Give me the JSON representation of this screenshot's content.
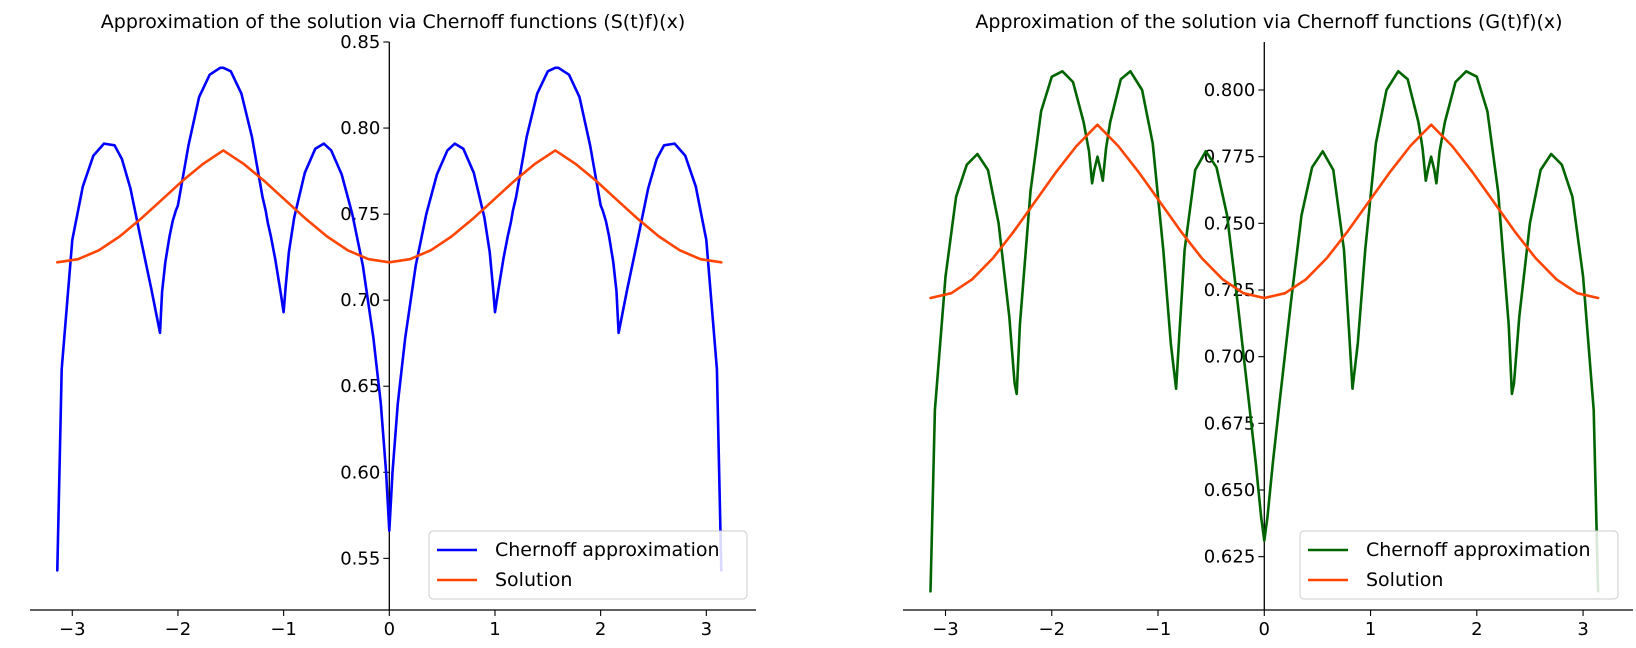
{
  "chart_data": [
    {
      "type": "line",
      "title": "Approximation of the solution via Chernoff functions (S(t)f)(x)",
      "xlim": [
        -3.4,
        3.47
      ],
      "ylim": [
        0.52,
        0.85
      ],
      "x_ticks": [
        -3,
        -2,
        -1,
        0,
        1,
        2,
        3
      ],
      "x_tick_labels": [
        "−3",
        "−2",
        "−1",
        "0",
        "1",
        "2",
        "3"
      ],
      "y_ticks": [
        0.55,
        0.6,
        0.65,
        0.7,
        0.75,
        0.8,
        0.85
      ],
      "y_tick_labels": [
        "0.55",
        "0.60",
        "0.65",
        "0.70",
        "0.75",
        "0.80",
        "0.85"
      ],
      "spines": "centered at origin (left and bottom)",
      "grid": false,
      "legend_position": "lower-right",
      "series": [
        {
          "name": "Chernoff approximation",
          "color": "#0000ff",
          "x": [
            -3.1416,
            -3.1,
            -3.0,
            -2.9,
            -2.8,
            -2.7,
            -2.6,
            -2.53,
            -2.45,
            -2.35,
            -2.25,
            -2.17,
            -2.15,
            -2.12,
            -2.08,
            -2.05,
            -2.02,
            -2.0,
            -1.9,
            -1.8,
            -1.7,
            -1.6,
            -1.57,
            -1.5,
            -1.4,
            -1.3,
            -1.2,
            -1.17,
            -1.15,
            -1.12,
            -1.08,
            -1.03,
            -1.0,
            -0.98,
            -0.95,
            -0.9,
            -0.8,
            -0.7,
            -0.62,
            -0.55,
            -0.45,
            -0.35,
            -0.25,
            -0.15,
            -0.08,
            -0.03,
            0.0,
            0.03,
            0.08,
            0.15,
            0.25,
            0.35,
            0.45,
            0.55,
            0.62,
            0.7,
            0.8,
            0.9,
            0.95,
            0.98,
            1.0,
            1.03,
            1.08,
            1.12,
            1.15,
            1.17,
            1.2,
            1.3,
            1.4,
            1.5,
            1.57,
            1.6,
            1.7,
            1.8,
            1.9,
            2.0,
            2.02,
            2.05,
            2.08,
            2.12,
            2.15,
            2.17,
            2.25,
            2.35,
            2.45,
            2.53,
            2.6,
            2.7,
            2.8,
            2.9,
            3.0,
            3.1,
            3.1416
          ],
          "y": [
            0.543,
            0.66,
            0.735,
            0.766,
            0.784,
            0.791,
            0.79,
            0.782,
            0.765,
            0.735,
            0.706,
            0.681,
            0.705,
            0.722,
            0.737,
            0.746,
            0.752,
            0.755,
            0.79,
            0.818,
            0.831,
            0.835,
            0.835,
            0.833,
            0.82,
            0.795,
            0.76,
            0.752,
            0.745,
            0.737,
            0.724,
            0.705,
            0.693,
            0.708,
            0.728,
            0.748,
            0.774,
            0.788,
            0.791,
            0.787,
            0.773,
            0.75,
            0.72,
            0.678,
            0.64,
            0.6,
            0.566,
            0.6,
            0.64,
            0.678,
            0.72,
            0.75,
            0.773,
            0.787,
            0.791,
            0.788,
            0.774,
            0.748,
            0.728,
            0.708,
            0.693,
            0.705,
            0.724,
            0.737,
            0.745,
            0.752,
            0.76,
            0.795,
            0.82,
            0.833,
            0.835,
            0.835,
            0.831,
            0.818,
            0.79,
            0.755,
            0.752,
            0.746,
            0.737,
            0.722,
            0.705,
            0.681,
            0.706,
            0.735,
            0.765,
            0.782,
            0.79,
            0.791,
            0.784,
            0.766,
            0.735,
            0.66,
            0.543
          ]
        },
        {
          "name": "Solution",
          "color": "#ff4500",
          "x": [
            -3.1416,
            -2.9452,
            -2.7489,
            -2.5525,
            -2.3562,
            -2.1598,
            -1.9635,
            -1.7671,
            -1.5708,
            -1.3744,
            -1.1781,
            -0.9817,
            -0.7854,
            -0.589,
            -0.3927,
            -0.1963,
            0.0,
            0.1963,
            0.3927,
            0.589,
            0.7854,
            0.9817,
            1.1781,
            1.3744,
            1.5708,
            1.7671,
            1.9635,
            2.1598,
            2.3562,
            2.5525,
            2.7489,
            2.9452,
            3.1416
          ],
          "y": [
            0.722,
            0.7238,
            0.729,
            0.737,
            0.747,
            0.758,
            0.769,
            0.779,
            0.787,
            0.779,
            0.769,
            0.758,
            0.747,
            0.737,
            0.729,
            0.7238,
            0.722,
            0.7238,
            0.729,
            0.737,
            0.747,
            0.758,
            0.769,
            0.779,
            0.787,
            0.779,
            0.769,
            0.758,
            0.747,
            0.737,
            0.729,
            0.7238,
            0.722
          ]
        }
      ]
    },
    {
      "type": "line",
      "title": "Approximation of the solution via Chernoff functions (G(t)f)(x)",
      "xlim": [
        -3.4,
        3.47
      ],
      "ylim": [
        0.605,
        0.818
      ],
      "x_ticks": [
        -3,
        -2,
        -1,
        0,
        1,
        2,
        3
      ],
      "x_tick_labels": [
        "−3",
        "−2",
        "−1",
        "0",
        "1",
        "2",
        "3"
      ],
      "y_ticks": [
        0.625,
        0.65,
        0.675,
        0.7,
        0.725,
        0.75,
        0.775,
        0.8
      ],
      "y_tick_labels": [
        "0.625",
        "0.650",
        "0.675",
        "0.700",
        "0.725",
        "0.750",
        "0.775",
        "0.800"
      ],
      "spines": "centered at origin (left and bottom)",
      "grid": false,
      "legend_position": "lower-right",
      "series": [
        {
          "name": "Chernoff approximation",
          "color": "#006400",
          "x": [
            -3.1416,
            -3.1,
            -3.0,
            -2.9,
            -2.8,
            -2.7,
            -2.6,
            -2.5,
            -2.4,
            -2.35,
            -2.33,
            -2.3,
            -2.2,
            -2.1,
            -2.0,
            -1.9,
            -1.8,
            -1.7,
            -1.65,
            -1.62,
            -1.6,
            -1.57,
            -1.54,
            -1.52,
            -1.49,
            -1.45,
            -1.35,
            -1.26,
            -1.15,
            -1.05,
            -0.95,
            -0.88,
            -0.83,
            -0.8,
            -0.75,
            -0.65,
            -0.55,
            -0.45,
            -0.35,
            -0.25,
            -0.15,
            -0.08,
            -0.03,
            0.0,
            0.03,
            0.08,
            0.15,
            0.25,
            0.35,
            0.45,
            0.55,
            0.65,
            0.75,
            0.8,
            0.83,
            0.88,
            0.95,
            1.05,
            1.15,
            1.26,
            1.35,
            1.45,
            1.49,
            1.52,
            1.54,
            1.57,
            1.6,
            1.62,
            1.65,
            1.7,
            1.8,
            1.9,
            2.0,
            2.1,
            2.2,
            2.3,
            2.33,
            2.35,
            2.4,
            2.5,
            2.6,
            2.7,
            2.8,
            2.9,
            3.0,
            3.1,
            3.1416
          ],
          "y": [
            0.612,
            0.68,
            0.73,
            0.76,
            0.772,
            0.776,
            0.77,
            0.75,
            0.715,
            0.69,
            0.686,
            0.712,
            0.762,
            0.792,
            0.805,
            0.807,
            0.803,
            0.788,
            0.777,
            0.765,
            0.77,
            0.775,
            0.77,
            0.766,
            0.778,
            0.788,
            0.804,
            0.807,
            0.8,
            0.78,
            0.74,
            0.705,
            0.688,
            0.708,
            0.74,
            0.77,
            0.777,
            0.771,
            0.753,
            0.72,
            0.685,
            0.66,
            0.64,
            0.631,
            0.64,
            0.66,
            0.685,
            0.72,
            0.753,
            0.771,
            0.777,
            0.77,
            0.74,
            0.708,
            0.688,
            0.705,
            0.74,
            0.78,
            0.8,
            0.807,
            0.804,
            0.788,
            0.778,
            0.766,
            0.77,
            0.775,
            0.77,
            0.765,
            0.777,
            0.788,
            0.803,
            0.807,
            0.805,
            0.792,
            0.762,
            0.712,
            0.686,
            0.69,
            0.715,
            0.75,
            0.77,
            0.776,
            0.772,
            0.76,
            0.73,
            0.68,
            0.612
          ]
        },
        {
          "name": "Solution",
          "color": "#ff4500",
          "x": [
            -3.1416,
            -2.9452,
            -2.7489,
            -2.5525,
            -2.3562,
            -2.1598,
            -1.9635,
            -1.7671,
            -1.5708,
            -1.3744,
            -1.1781,
            -0.9817,
            -0.7854,
            -0.589,
            -0.3927,
            -0.1963,
            0.0,
            0.1963,
            0.3927,
            0.589,
            0.7854,
            0.9817,
            1.1781,
            1.3744,
            1.5708,
            1.7671,
            1.9635,
            2.1598,
            2.3562,
            2.5525,
            2.7489,
            2.9452,
            3.1416
          ],
          "y": [
            0.722,
            0.7238,
            0.729,
            0.737,
            0.747,
            0.758,
            0.769,
            0.779,
            0.787,
            0.779,
            0.769,
            0.758,
            0.747,
            0.737,
            0.729,
            0.7238,
            0.722,
            0.7238,
            0.729,
            0.737,
            0.747,
            0.758,
            0.769,
            0.779,
            0.787,
            0.779,
            0.769,
            0.758,
            0.747,
            0.737,
            0.729,
            0.7238,
            0.722
          ]
        }
      ]
    }
  ]
}
